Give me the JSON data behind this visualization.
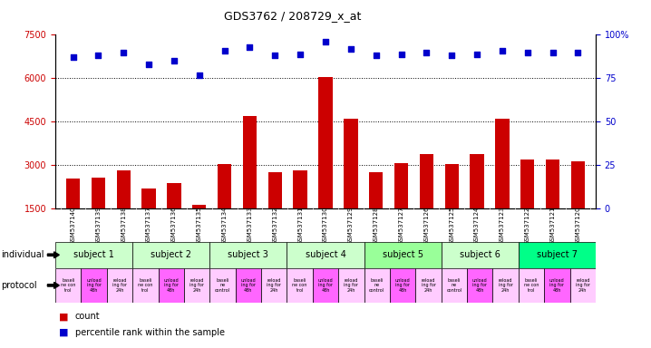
{
  "title": "GDS3762 / 208729_x_at",
  "samples": [
    "GSM537140",
    "GSM537139",
    "GSM537138",
    "GSM537137",
    "GSM537136",
    "GSM537135",
    "GSM537134",
    "GSM537133",
    "GSM537132",
    "GSM537131",
    "GSM537130",
    "GSM537129",
    "GSM537128",
    "GSM537127",
    "GSM537126",
    "GSM537125",
    "GSM537124",
    "GSM537123",
    "GSM537122",
    "GSM537121",
    "GSM537120"
  ],
  "counts": [
    2550,
    2580,
    2830,
    2200,
    2380,
    1650,
    3050,
    4700,
    2750,
    2830,
    6050,
    4600,
    2750,
    3060,
    3400,
    3050,
    3380,
    4600,
    3200,
    3200,
    3150
  ],
  "percentile_ranks": [
    87,
    88,
    90,
    83,
    85,
    77,
    91,
    93,
    88,
    89,
    96,
    92,
    88,
    89,
    90,
    88,
    89,
    91,
    90,
    90,
    90
  ],
  "ylim_left": [
    1500,
    7500
  ],
  "ylim_right": [
    0,
    100
  ],
  "yticks_left": [
    1500,
    3000,
    4500,
    6000,
    7500
  ],
  "yticks_right": [
    0,
    25,
    50,
    75,
    100
  ],
  "bar_color": "#cc0000",
  "dot_color": "#0000cc",
  "tick_bg_color": "#cccccc",
  "subjects": [
    {
      "label": "subject 1",
      "start": 0,
      "end": 3,
      "color": "#ccffcc"
    },
    {
      "label": "subject 2",
      "start": 3,
      "end": 6,
      "color": "#ccffcc"
    },
    {
      "label": "subject 3",
      "start": 6,
      "end": 9,
      "color": "#ccffcc"
    },
    {
      "label": "subject 4",
      "start": 9,
      "end": 12,
      "color": "#ccffcc"
    },
    {
      "label": "subject 5",
      "start": 12,
      "end": 15,
      "color": "#99ff99"
    },
    {
      "label": "subject 6",
      "start": 15,
      "end": 18,
      "color": "#ccffcc"
    },
    {
      "label": "subject 7",
      "start": 18,
      "end": 21,
      "color": "#00ff88"
    }
  ],
  "protocols": [
    {
      "label": "baseli\nne con\ntrol",
      "color": "#ffccff"
    },
    {
      "label": "unload\ning for\n48h",
      "color": "#ff66ff"
    },
    {
      "label": "reload\ning for\n24h",
      "color": "#ffccff"
    },
    {
      "label": "baseli\nne con\ntrol",
      "color": "#ffccff"
    },
    {
      "label": "unload\ning for\n48h",
      "color": "#ff66ff"
    },
    {
      "label": "reload\ning for\n24h",
      "color": "#ffccff"
    },
    {
      "label": "baseli\nne\ncontrol",
      "color": "#ffccff"
    },
    {
      "label": "unload\ning for\n48h",
      "color": "#ff66ff"
    },
    {
      "label": "reload\ning for\n24h",
      "color": "#ffccff"
    },
    {
      "label": "baseli\nne con\ntrol",
      "color": "#ffccff"
    },
    {
      "label": "unload\ning for\n48h",
      "color": "#ff66ff"
    },
    {
      "label": "reload\ning for\n24h",
      "color": "#ffccff"
    },
    {
      "label": "baseli\nne\ncontrol",
      "color": "#ffccff"
    },
    {
      "label": "unload\ning for\n48h",
      "color": "#ff66ff"
    },
    {
      "label": "reload\ning for\n24h",
      "color": "#ffccff"
    },
    {
      "label": "baseli\nne\ncontrol",
      "color": "#ffccff"
    },
    {
      "label": "unload\ning for\n48h",
      "color": "#ff66ff"
    },
    {
      "label": "reload\ning for\n24h",
      "color": "#ffccff"
    },
    {
      "label": "baseli\nne con\ntrol",
      "color": "#ffccff"
    },
    {
      "label": "unload\ning for\n48h",
      "color": "#ff66ff"
    },
    {
      "label": "reload\ning for\n24h",
      "color": "#ffccff"
    }
  ],
  "background_color": "#ffffff",
  "tick_label_color_left": "#cc0000",
  "tick_label_color_right": "#0000cc",
  "legend_count_color": "#cc0000",
  "legend_pct_color": "#0000cc"
}
